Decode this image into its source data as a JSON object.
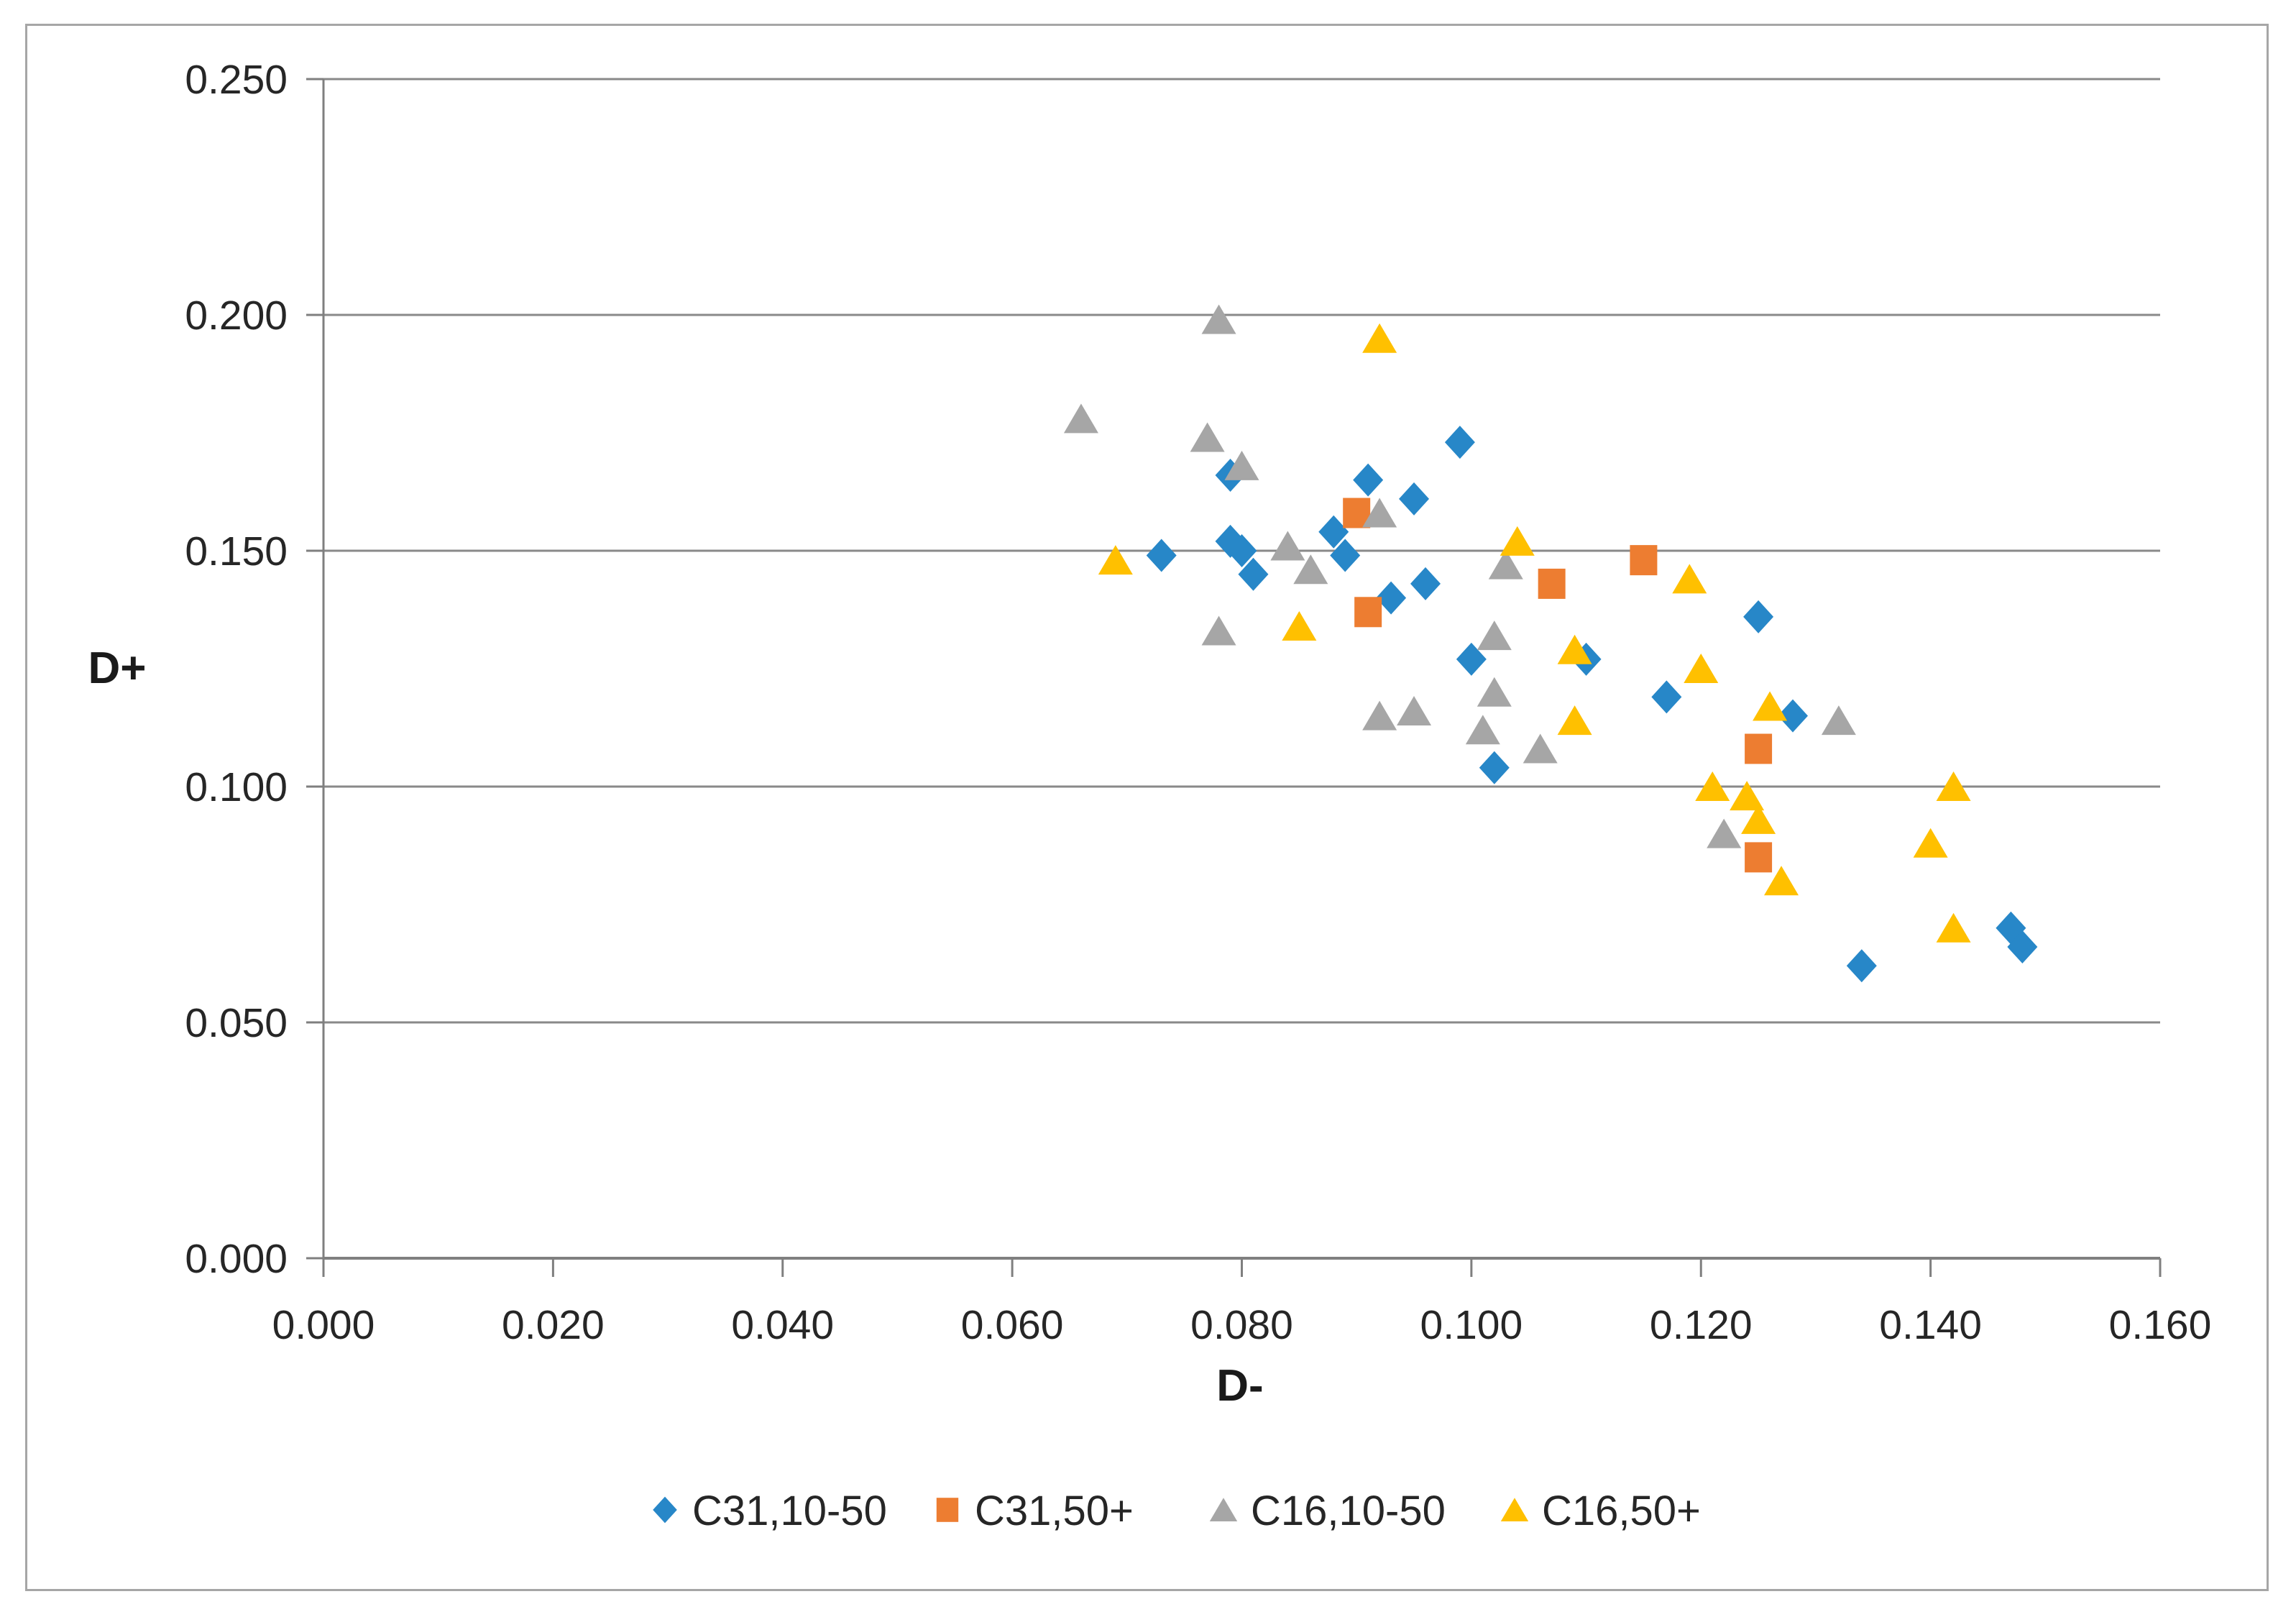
{
  "chart_data": {
    "type": "scatter",
    "title": "",
    "xlabel": "D-",
    "ylabel": "D+",
    "xlim": [
      0.0,
      0.16
    ],
    "ylim": [
      0.0,
      0.25
    ],
    "x_tick_labels": [
      "0.000",
      "0.020",
      "0.040",
      "0.060",
      "0.080",
      "0.100",
      "0.120",
      "0.140",
      "0.160"
    ],
    "y_tick_labels": [
      "0.000",
      "0.050",
      "0.100",
      "0.150",
      "0.200",
      "0.250"
    ],
    "grid": "horizontal-only",
    "legend_position": "bottom-center",
    "colors": {
      "axis_line": "#7f7f7f",
      "gridline": "#898989",
      "tick_text": "#262626",
      "axis_title_text": "#1a1a1a",
      "legend_text": "#262626",
      "frame_border": "#a6a6a6",
      "background": "#ffffff"
    },
    "series": [
      {
        "name": "C31,10-50",
        "marker": "diamond",
        "color": "#2787c8",
        "points": [
          [
            0.073,
            0.149
          ],
          [
            0.079,
            0.166
          ],
          [
            0.079,
            0.152
          ],
          [
            0.08,
            0.15
          ],
          [
            0.081,
            0.145
          ],
          [
            0.088,
            0.154
          ],
          [
            0.089,
            0.149
          ],
          [
            0.091,
            0.165
          ],
          [
            0.093,
            0.14
          ],
          [
            0.095,
            0.161
          ],
          [
            0.096,
            0.143
          ],
          [
            0.099,
            0.173
          ],
          [
            0.1,
            0.127
          ],
          [
            0.102,
            0.104
          ],
          [
            0.11,
            0.127
          ],
          [
            0.117,
            0.119
          ],
          [
            0.125,
            0.136
          ],
          [
            0.128,
            0.115
          ],
          [
            0.134,
            0.062
          ],
          [
            0.147,
            0.07
          ],
          [
            0.148,
            0.066
          ]
        ]
      },
      {
        "name": "C31,50+",
        "marker": "square",
        "color": "#ed7d31",
        "points": [
          [
            0.09,
            0.158
          ],
          [
            0.091,
            0.137
          ],
          [
            0.107,
            0.143
          ],
          [
            0.115,
            0.148
          ],
          [
            0.125,
            0.108
          ],
          [
            0.125,
            0.085
          ]
        ]
      },
      {
        "name": "C16,10-50",
        "marker": "triangle",
        "color": "#a6a6a6",
        "points": [
          [
            0.066,
            0.178
          ],
          [
            0.077,
            0.174
          ],
          [
            0.078,
            0.199
          ],
          [
            0.08,
            0.168
          ],
          [
            0.084,
            0.151
          ],
          [
            0.086,
            0.146
          ],
          [
            0.078,
            0.133
          ],
          [
            0.092,
            0.158
          ],
          [
            0.092,
            0.115
          ],
          [
            0.095,
            0.116
          ],
          [
            0.101,
            0.112
          ],
          [
            0.102,
            0.132
          ],
          [
            0.102,
            0.12
          ],
          [
            0.103,
            0.147
          ],
          [
            0.106,
            0.108
          ],
          [
            0.122,
            0.09
          ],
          [
            0.132,
            0.114
          ]
        ]
      },
      {
        "name": "C16,50+",
        "marker": "triangle",
        "color": "#ffc000",
        "points": [
          [
            0.069,
            0.148
          ],
          [
            0.085,
            0.134
          ],
          [
            0.092,
            0.195
          ],
          [
            0.104,
            0.152
          ],
          [
            0.109,
            0.129
          ],
          [
            0.109,
            0.114
          ],
          [
            0.119,
            0.144
          ],
          [
            0.12,
            0.125
          ],
          [
            0.121,
            0.1
          ],
          [
            0.124,
            0.098
          ],
          [
            0.125,
            0.093
          ],
          [
            0.126,
            0.117
          ],
          [
            0.127,
            0.08
          ],
          [
            0.14,
            0.088
          ],
          [
            0.142,
            0.1
          ],
          [
            0.142,
            0.07
          ]
        ]
      }
    ]
  }
}
